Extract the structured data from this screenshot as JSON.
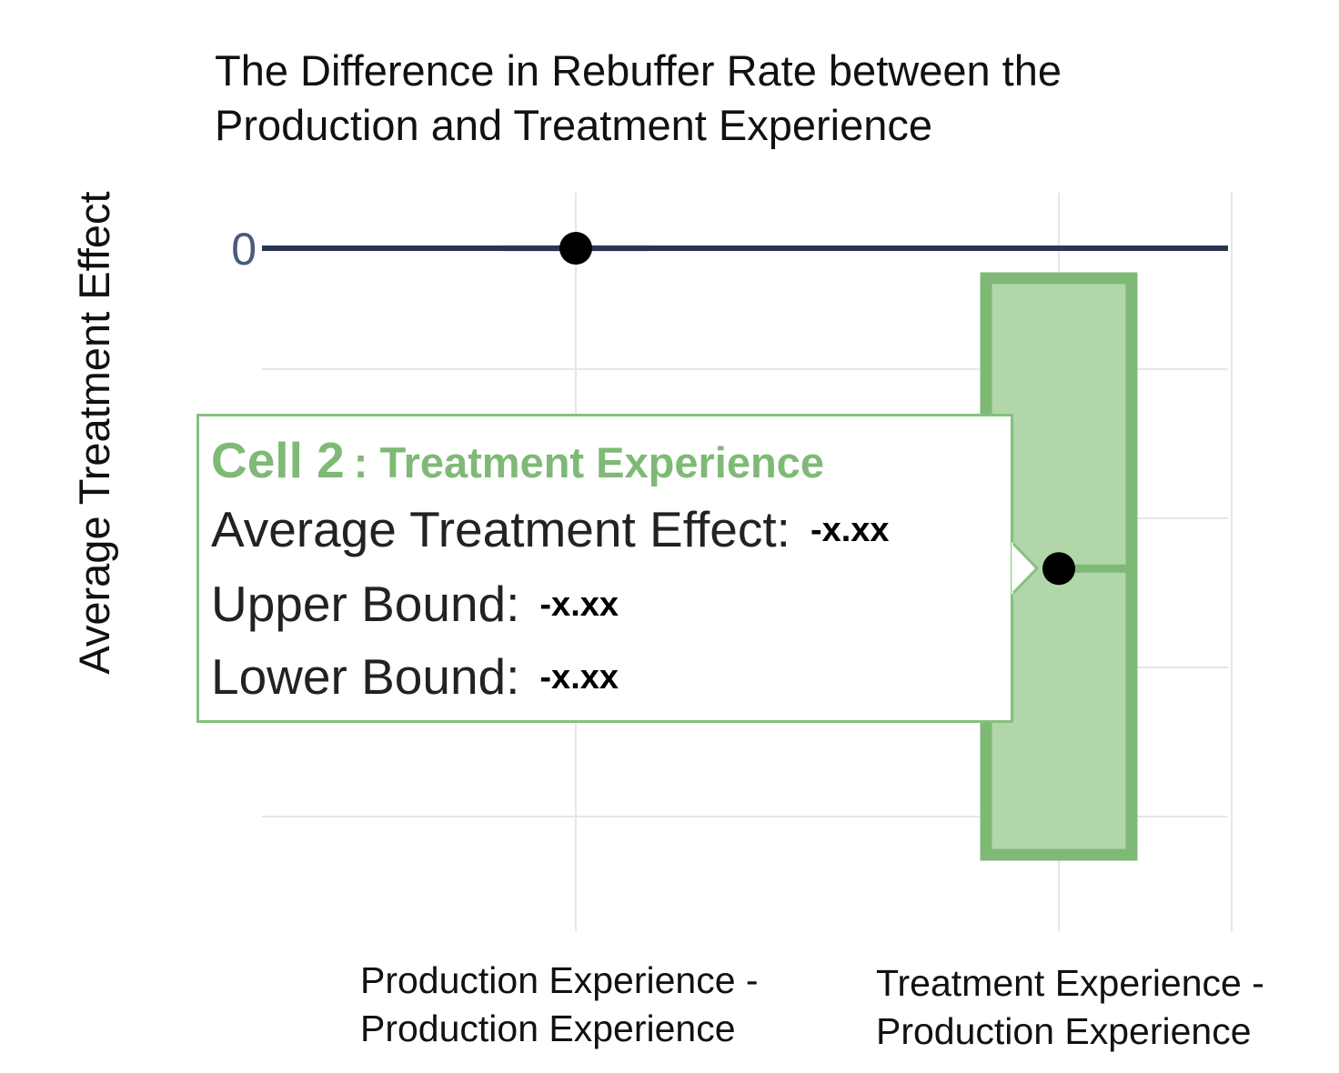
{
  "chart_data": {
    "type": "errorbar",
    "title": "The Difference in Rebuffer Rate between the Production and Treatment Experience",
    "ylabel": "Average Treatment Effect",
    "xlabel": "",
    "y_ticks": [
      0
    ],
    "categories": [
      "Production Experience - Production Experience",
      "Treatment Experience - Production Experience"
    ],
    "categories_lines": [
      [
        "Production Experience -",
        "Production Experience"
      ],
      [
        "Treatment Experience -",
        "Production Experience"
      ]
    ],
    "points": [
      {
        "category": "Production Experience - Production Experience",
        "value": 0,
        "lower": 0,
        "upper": 0
      },
      {
        "category": "Treatment Experience - Production Experience",
        "value": -0.235,
        "lower": -0.445,
        "upper": -0.022
      }
    ],
    "ylim": [
      -0.465,
      0.02
    ],
    "grid": true,
    "colors": {
      "band": "#7fb976",
      "band_fill": "#b1d6aa",
      "zero_line": "#2a3550",
      "point": "#000000",
      "grid": "#e6e6e6"
    }
  },
  "tooltip": {
    "cell": "Cell 2",
    "name": ": Treatment Experience",
    "rows": [
      {
        "label": "Average Treatment Effect:",
        "value": "-x.xx"
      },
      {
        "label": "Upper Bound:",
        "value": "-x.xx"
      },
      {
        "label": "Lower Bound:",
        "value": "-x.xx"
      }
    ]
  }
}
